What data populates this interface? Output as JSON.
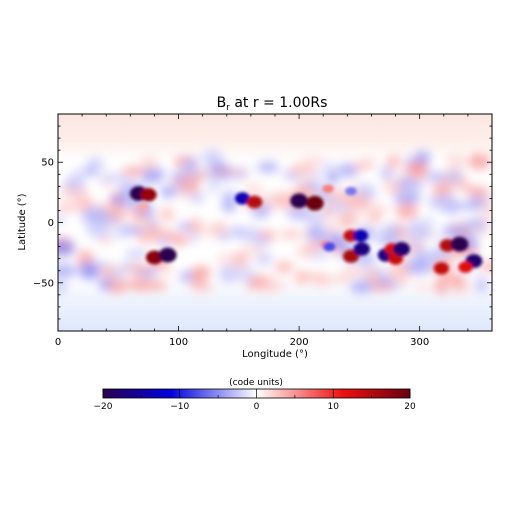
{
  "chart_data": {
    "type": "heatmap",
    "title_main": "B",
    "title_sub": "r",
    "title_rest": " at r = 1.00Rs",
    "xlabel": "Longitude (°)",
    "ylabel": "Latitude (°)",
    "xlim": [
      0,
      360
    ],
    "ylim": [
      -90,
      90
    ],
    "x_ticks": [
      0,
      100,
      200,
      300
    ],
    "y_ticks": [
      -50,
      0,
      50
    ],
    "x_tick_labels": [
      "0",
      "100",
      "200",
      "300"
    ],
    "y_tick_labels": [
      "−50",
      "0",
      "50"
    ],
    "colorbar": {
      "label": "(code units)",
      "range": [
        -20,
        20
      ],
      "ticks": [
        -20,
        -10,
        0,
        10,
        20
      ],
      "tick_labels": [
        "−20",
        "−10",
        "0",
        "10",
        "20"
      ],
      "colors": [
        "#2a004f",
        "#0000e0",
        "#ffffff",
        "#ee1010",
        "#6a0010"
      ]
    },
    "active_regions": [
      {
        "lon": 67,
        "lat": 24,
        "b": -20
      },
      {
        "lon": 75,
        "lat": 23,
        "b": 17
      },
      {
        "lon": 71,
        "lat": 13,
        "b": 4
      },
      {
        "lon": 153,
        "lat": 20,
        "b": -14
      },
      {
        "lon": 163,
        "lat": 17,
        "b": 15
      },
      {
        "lon": 200,
        "lat": 18,
        "b": -20
      },
      {
        "lon": 213,
        "lat": 16,
        "b": 20
      },
      {
        "lon": 224,
        "lat": 28,
        "b": 6
      },
      {
        "lon": 243,
        "lat": 26,
        "b": -6
      },
      {
        "lon": 80,
        "lat": -29,
        "b": 18
      },
      {
        "lon": 91,
        "lat": -27,
        "b": -20
      },
      {
        "lon": 222,
        "lat": -18,
        "b": 5
      },
      {
        "lon": 243,
        "lat": -11,
        "b": 14
      },
      {
        "lon": 251,
        "lat": -11,
        "b": -14
      },
      {
        "lon": 243,
        "lat": -28,
        "b": 16
      },
      {
        "lon": 252,
        "lat": -22,
        "b": -17
      },
      {
        "lon": 225,
        "lat": -20,
        "b": -8
      },
      {
        "lon": 272,
        "lat": -27,
        "b": -17
      },
      {
        "lon": 277,
        "lat": -22,
        "b": 13
      },
      {
        "lon": 280,
        "lat": -30,
        "b": 14
      },
      {
        "lon": 285,
        "lat": -22,
        "b": -18
      },
      {
        "lon": 323,
        "lat": -19,
        "b": 15
      },
      {
        "lon": 333,
        "lat": -18,
        "b": -20
      },
      {
        "lon": 345,
        "lat": -32,
        "b": -18
      },
      {
        "lon": 338,
        "lat": -37,
        "b": 12
      },
      {
        "lon": 318,
        "lat": -38,
        "b": 14
      }
    ]
  }
}
